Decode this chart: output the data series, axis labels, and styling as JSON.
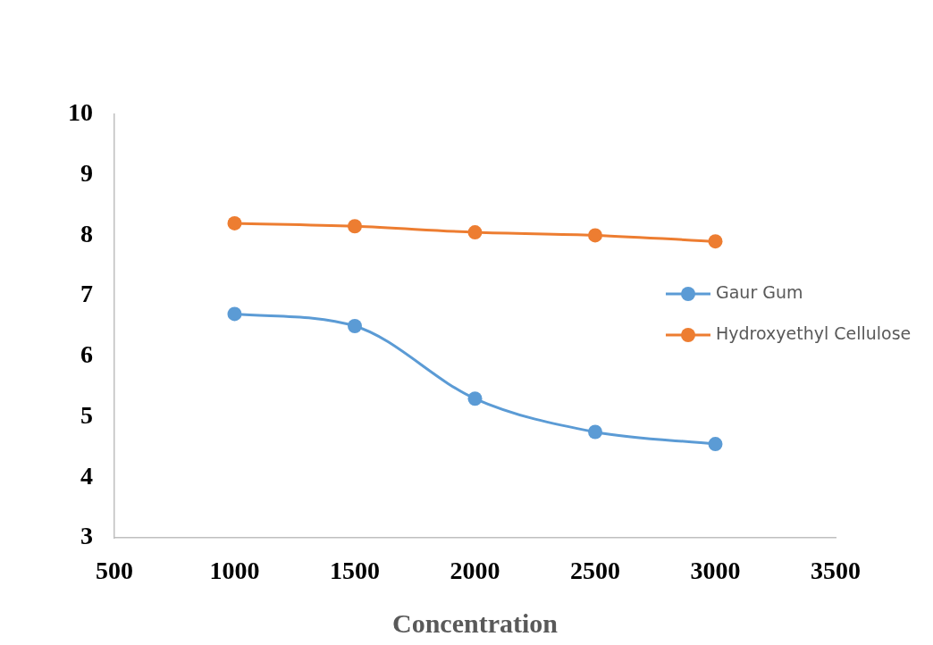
{
  "chart_data": {
    "type": "line",
    "xlabel": "Concentration",
    "x": [
      1000,
      1500,
      2000,
      2500,
      3000
    ],
    "series": [
      {
        "name": "Gaur Gum",
        "color": "#5b9bd5",
        "values": [
          6.7,
          6.5,
          5.3,
          4.75,
          4.55
        ]
      },
      {
        "name": "Hydroxyethyl Cellulose",
        "color": "#ed7d31",
        "values": [
          8.2,
          8.15,
          8.05,
          8.0,
          7.9
        ]
      }
    ],
    "xlim": [
      500,
      3500
    ],
    "xticks": [
      500,
      1000,
      1500,
      2000,
      2500,
      3000,
      3500
    ],
    "ylim": [
      3,
      10
    ],
    "yticks": [
      3,
      4,
      5,
      6,
      7,
      8,
      9,
      10
    ],
    "grid": false,
    "legend": "right",
    "marker": "circle",
    "line_style": "solid"
  }
}
